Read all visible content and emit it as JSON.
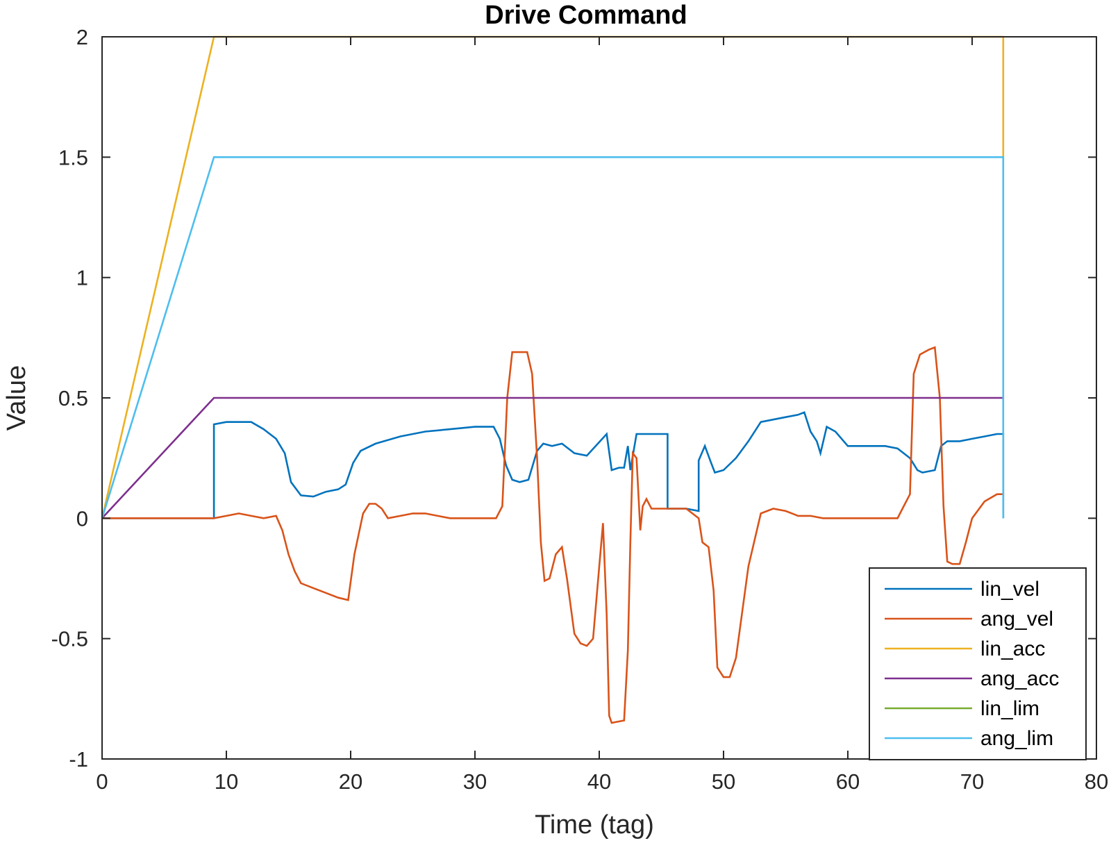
{
  "chart_data": {
    "type": "line",
    "title": "Drive Command",
    "xlabel": "Time (tag)",
    "ylabel": "Value",
    "xlim": [
      0,
      80
    ],
    "ylim": [
      -1,
      2
    ],
    "xticks": [
      0,
      10,
      20,
      30,
      40,
      50,
      60,
      70,
      80
    ],
    "yticks": [
      -1,
      -0.5,
      0,
      0.5,
      1,
      1.5,
      2
    ],
    "xtick_labels": [
      "0",
      "10",
      "20",
      "30",
      "40",
      "50",
      "60",
      "70",
      "80"
    ],
    "ytick_labels": [
      "-1",
      "-0.5",
      "0",
      "0.5",
      "1",
      "1.5",
      "2"
    ],
    "grid": false,
    "legend_position": "bottom-right",
    "series": [
      {
        "name": "lin_vel",
        "color": "#0072BD",
        "x": [
          0,
          9,
          9,
          10,
          12,
          13,
          14,
          14.7,
          15.2,
          16,
          17,
          18,
          19,
          19.6,
          20.2,
          20.8,
          22,
          24,
          26,
          28,
          30,
          31.5,
          32,
          32.5,
          33,
          33.6,
          34.3,
          35,
          35.5,
          36.2,
          37,
          38,
          39,
          40.6,
          41,
          41.6,
          42,
          42.3,
          42.5,
          43,
          44,
          45.5,
          45.5,
          47,
          48,
          48,
          48.5,
          49,
          49.3,
          50,
          51,
          52,
          53,
          54,
          55,
          56,
          56.5,
          57,
          57.5,
          57.8,
          58.3,
          59,
          60,
          61,
          62,
          63,
          64,
          65,
          65.6,
          66,
          67,
          67.5,
          68,
          69,
          70,
          71,
          72,
          72.5,
          72.5
        ],
        "y": [
          0,
          0,
          0.39,
          0.4,
          0.4,
          0.37,
          0.33,
          0.27,
          0.15,
          0.095,
          0.09,
          0.11,
          0.12,
          0.14,
          0.23,
          0.28,
          0.31,
          0.34,
          0.36,
          0.37,
          0.38,
          0.38,
          0.33,
          0.22,
          0.16,
          0.15,
          0.16,
          0.28,
          0.31,
          0.3,
          0.31,
          0.27,
          0.26,
          0.35,
          0.2,
          0.21,
          0.21,
          0.3,
          0.2,
          0.35,
          0.35,
          0.35,
          0.04,
          0.04,
          0.03,
          0.24,
          0.3,
          0.23,
          0.19,
          0.2,
          0.25,
          0.32,
          0.4,
          0.41,
          0.42,
          0.43,
          0.44,
          0.36,
          0.32,
          0.27,
          0.38,
          0.36,
          0.3,
          0.3,
          0.3,
          0.3,
          0.29,
          0.25,
          0.2,
          0.19,
          0.2,
          0.3,
          0.32,
          0.32,
          0.33,
          0.34,
          0.35,
          0.35,
          0
        ]
      },
      {
        "name": "ang_vel",
        "color": "#D95319",
        "x": [
          0,
          9,
          10,
          11,
          12,
          13,
          14,
          14.5,
          15,
          15.5,
          16,
          17,
          18,
          19,
          19.8,
          20.3,
          21,
          21.5,
          22,
          22.5,
          23,
          24,
          25,
          26,
          27,
          28,
          29,
          30,
          31,
          31.7,
          32.2,
          32.6,
          33,
          34.2,
          34.6,
          35,
          35.3,
          35.6,
          36,
          36.5,
          37,
          37.4,
          38,
          38.5,
          39,
          39.5,
          40,
          40.3,
          40.6,
          40.8,
          41,
          42,
          42.3,
          42.5,
          42.7,
          43,
          43.3,
          43.5,
          43.8,
          44.2,
          45.5,
          47,
          48,
          48.3,
          48.8,
          49.2,
          49.5,
          50,
          50.5,
          51,
          52,
          53,
          54,
          55,
          56,
          57,
          58,
          59,
          60,
          61,
          62,
          63,
          64,
          64.5,
          65,
          65.3,
          65.8,
          66.5,
          67,
          67.4,
          67.7,
          68,
          68.4,
          69,
          69.5,
          70,
          71,
          72,
          72.5
        ],
        "y": [
          0,
          0,
          0.01,
          0.02,
          0.01,
          0,
          0.01,
          -0.05,
          -0.15,
          -0.22,
          -0.27,
          -0.29,
          -0.31,
          -0.33,
          -0.34,
          -0.15,
          0.02,
          0.06,
          0.06,
          0.04,
          0,
          0.01,
          0.02,
          0.02,
          0.01,
          0,
          0,
          0,
          0,
          0,
          0.05,
          0.5,
          0.69,
          0.69,
          0.6,
          0.25,
          -0.1,
          -0.26,
          -0.25,
          -0.15,
          -0.12,
          -0.25,
          -0.48,
          -0.52,
          -0.53,
          -0.5,
          -0.2,
          -0.02,
          -0.4,
          -0.82,
          -0.85,
          -0.84,
          -0.55,
          -0.1,
          0.27,
          0.25,
          -0.05,
          0.05,
          0.08,
          0.04,
          0.04,
          0.04,
          0,
          -0.1,
          -0.12,
          -0.3,
          -0.62,
          -0.66,
          -0.66,
          -0.58,
          -0.2,
          0.02,
          0.04,
          0.03,
          0.01,
          0.01,
          0,
          0,
          0,
          0,
          0,
          0,
          0,
          0.05,
          0.1,
          0.6,
          0.68,
          0.7,
          0.71,
          0.5,
          0.05,
          -0.18,
          -0.19,
          -0.19,
          -0.1,
          0,
          0.07,
          0.1,
          0.1
        ]
      },
      {
        "name": "lin_acc",
        "color": "#EDB120",
        "x": [
          0,
          9,
          72.5,
          72.5
        ],
        "y": [
          0,
          2,
          2,
          1.5
        ]
      },
      {
        "name": "ang_acc",
        "color": "#7E2F8E",
        "x": [
          0,
          9,
          72.5
        ],
        "y": [
          0,
          0.5,
          0.5
        ]
      },
      {
        "name": "lin_lim",
        "color": "#77AC30",
        "x": [],
        "y": []
      },
      {
        "name": "ang_lim",
        "color": "#4DBEEE",
        "x": [
          0,
          9,
          72.5,
          72.5
        ],
        "y": [
          0,
          1.5,
          1.5,
          0
        ]
      }
    ]
  }
}
